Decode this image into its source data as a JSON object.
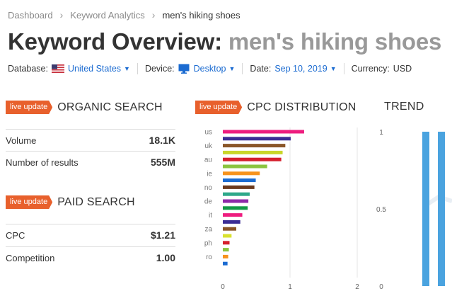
{
  "breadcrumb": {
    "items": [
      "Dashboard",
      "Keyword Analytics"
    ],
    "current": "men's hiking shoes"
  },
  "header": {
    "title": "Keyword Overview:",
    "keyword": "men's hiking shoes"
  },
  "filters": {
    "database_label": "Database:",
    "database_value": "United States",
    "device_label": "Device:",
    "device_value": "Desktop",
    "date_label": "Date:",
    "date_value": "Sep 10, 2019",
    "currency_label": "Currency:",
    "currency_value": "USD"
  },
  "badge_label": "live update",
  "organic": {
    "title": "ORGANIC SEARCH",
    "rows": [
      {
        "label": "Volume",
        "value": "18.1K"
      },
      {
        "label": "Number of results",
        "value": "555M"
      }
    ]
  },
  "paid": {
    "title": "PAID SEARCH",
    "rows": [
      {
        "label": "CPC",
        "value": "$1.21"
      },
      {
        "label": "Competition",
        "value": "1.00"
      }
    ]
  },
  "cpc": {
    "title": "CPC DISTRIBUTION"
  },
  "trend": {
    "title": "TREND"
  },
  "chart_data": [
    {
      "type": "bar",
      "orientation": "horizontal",
      "title": "CPC DISTRIBUTION",
      "categories": [
        "us",
        "",
        "uk",
        "",
        "au",
        "",
        "ie",
        "",
        "no",
        "",
        "de",
        "",
        "it",
        "",
        "za",
        "",
        "ph",
        "",
        "ro",
        ""
      ],
      "tick_labels": [
        "us",
        "uk",
        "au",
        "ie",
        "no",
        "de",
        "it",
        "za",
        "ph",
        "ro"
      ],
      "values": [
        1.21,
        1.01,
        0.93,
        0.89,
        0.87,
        0.66,
        0.55,
        0.49,
        0.47,
        0.4,
        0.38,
        0.37,
        0.29,
        0.26,
        0.2,
        0.13,
        0.1,
        0.09,
        0.08,
        0.07
      ],
      "colors": [
        "#ee1d7f",
        "#3b2d95",
        "#8a5628",
        "#c9d62a",
        "#d51f2d",
        "#8bc43f",
        "#f7931d",
        "#1b6bd1",
        "#6b3a1e",
        "#2ea88a",
        "#8d2aa8",
        "#129a45",
        "#ee1d7f",
        "#3b2d95",
        "#8a5628",
        "#d9e22f",
        "#d51f2d",
        "#8bc43f",
        "#f7931d",
        "#1b6bd1"
      ],
      "x_ticks": [
        0,
        1,
        2
      ],
      "xlim": [
        0,
        2
      ]
    },
    {
      "type": "bar",
      "title": "TREND",
      "y_ticks": [
        0,
        0.5,
        1
      ],
      "ylim": [
        0,
        1
      ],
      "values": [
        1,
        1
      ],
      "color": "#4aa3df"
    }
  ]
}
